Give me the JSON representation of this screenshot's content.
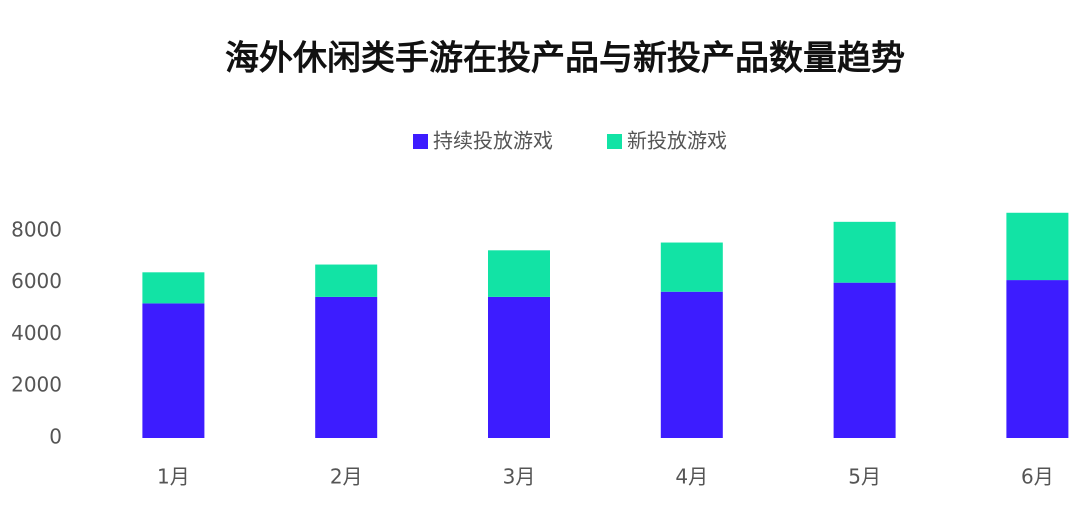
{
  "chart_data": {
    "type": "stacked_bar",
    "title": "海外休闲类手游在投产品与新投产品数量趋势",
    "categories": [
      "1月",
      "2月",
      "3月",
      "4月",
      "5月",
      "6月"
    ],
    "series": [
      {
        "name": "持续投放游戏",
        "color": "#3d1cff",
        "values": [
          5200,
          5450,
          5450,
          5650,
          6000,
          6100
        ]
      },
      {
        "name": "新投放游戏",
        "color": "#12e3a5",
        "values": [
          1200,
          1250,
          1800,
          1900,
          2350,
          2600
        ]
      }
    ],
    "ylim": [
      0,
      9000
    ],
    "yticks": [
      0,
      2000,
      4000,
      6000,
      8000
    ],
    "grid": false,
    "legend": "top"
  }
}
